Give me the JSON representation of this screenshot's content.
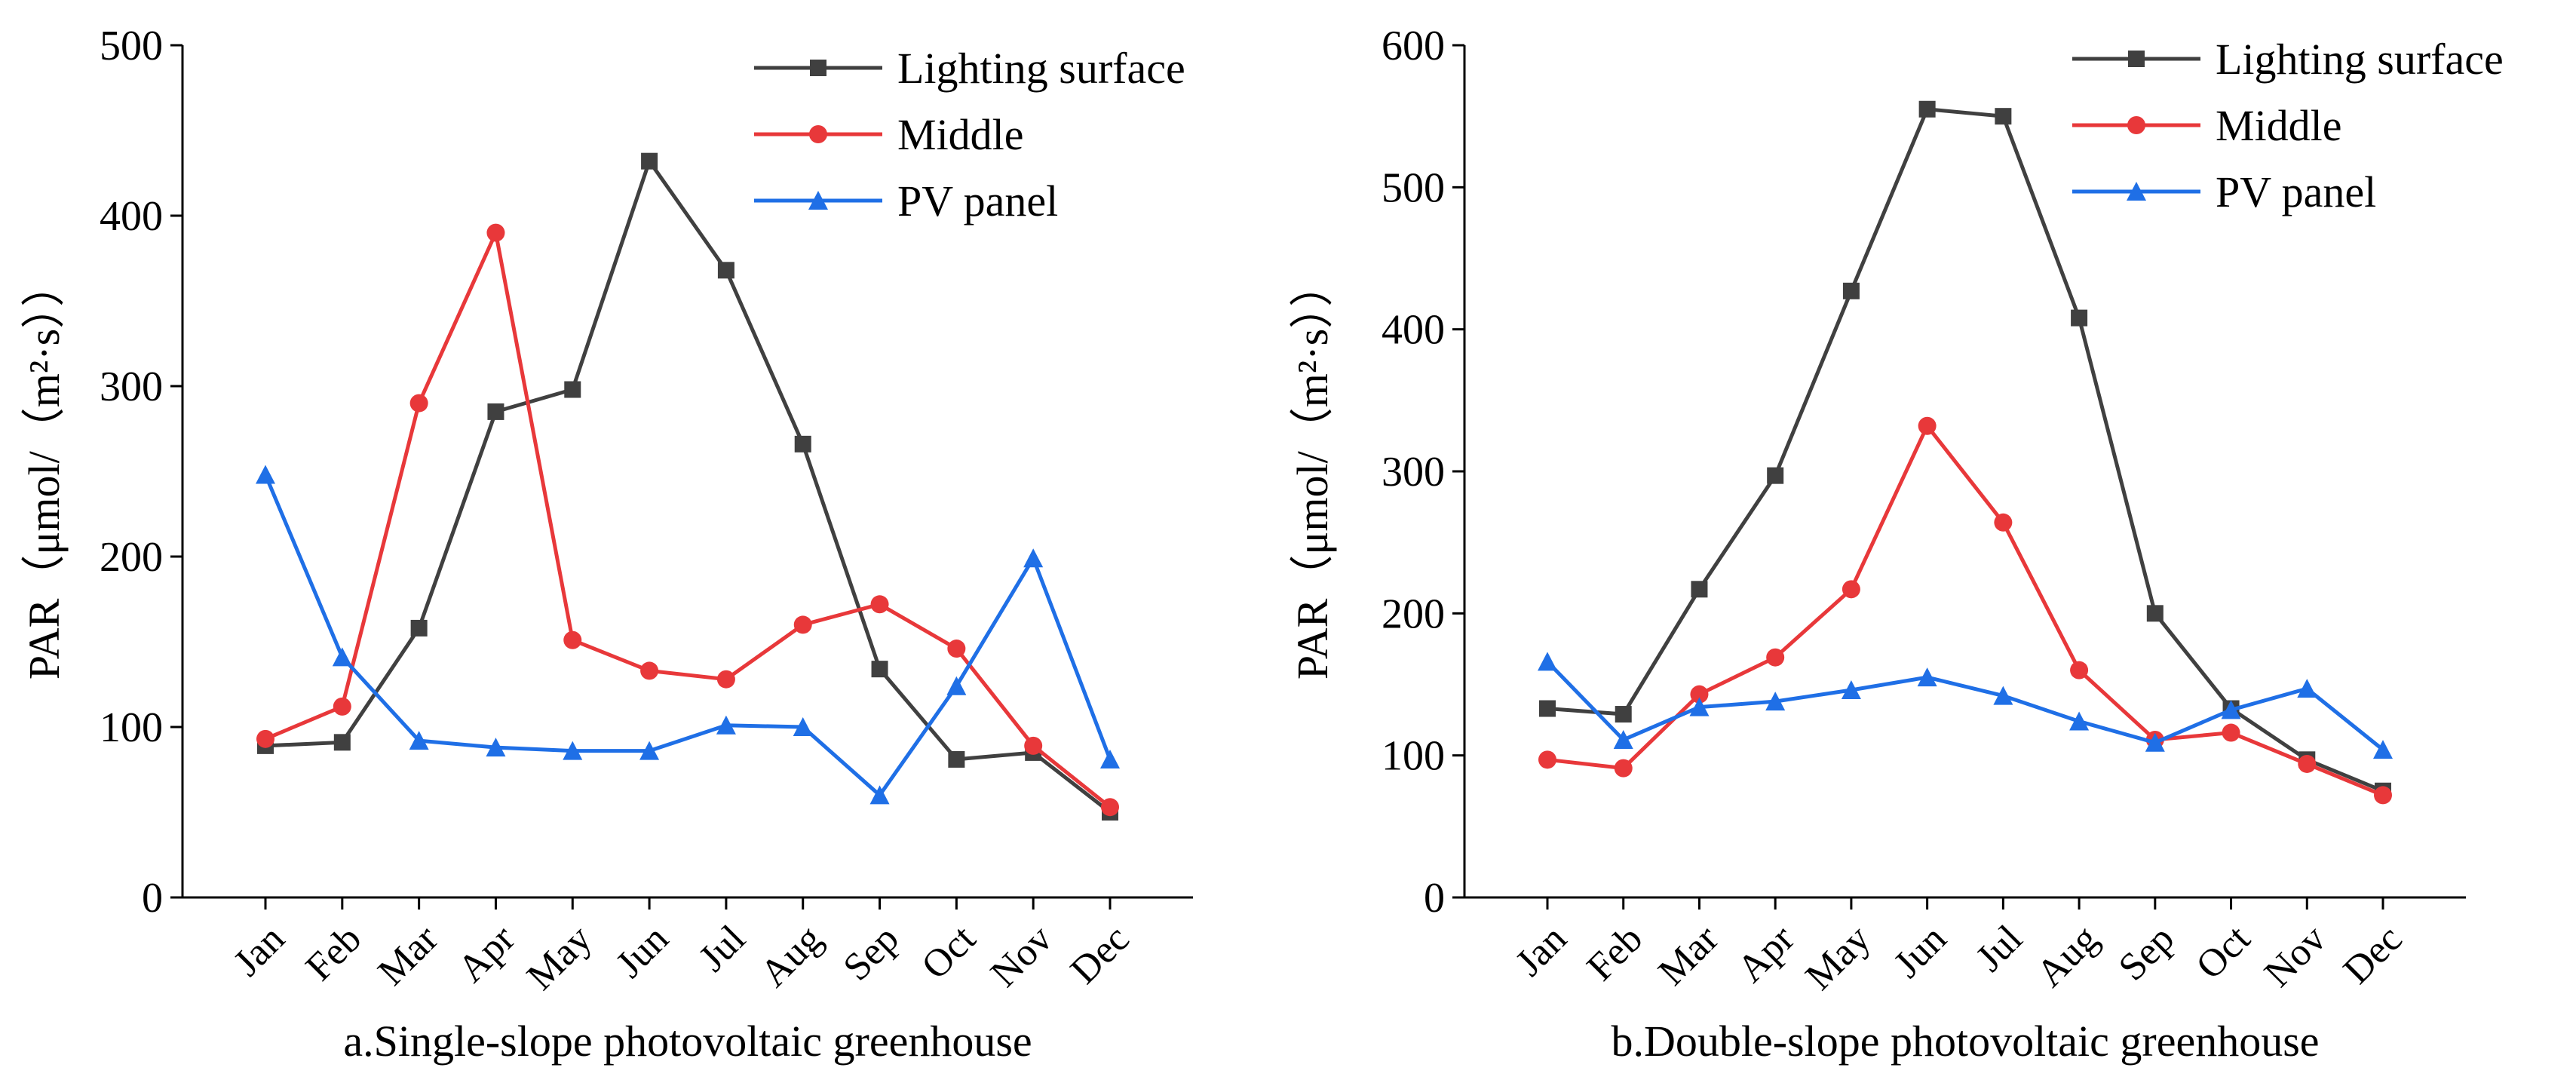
{
  "colors": {
    "lighting": "#404040",
    "middle": "#e8383a",
    "pv": "#1f6fe6",
    "axis": "#000000"
  },
  "chart_data": [
    {
      "type": "line",
      "title": "a.Single-slope photovoltaic greenhouse",
      "xlabel": "",
      "ylabel": "PAR（μmol/（m²·s））",
      "ylim": [
        0,
        500
      ],
      "yticks": [
        0,
        100,
        200,
        300,
        400,
        500
      ],
      "legend_position": "top-right",
      "categories": [
        "Jan",
        "Feb",
        "Mar",
        "Apr",
        "May",
        "Jun",
        "Jul",
        "Aug",
        "Sep",
        "Oct",
        "Nov",
        "Dec"
      ],
      "series": [
        {
          "name": "Lighting surface",
          "marker": "square",
          "color_key": "lighting",
          "values": [
            89,
            91,
            158,
            285,
            298,
            432,
            368,
            266,
            134,
            81,
            85,
            50
          ]
        },
        {
          "name": "Middle",
          "marker": "circle",
          "color_key": "middle",
          "values": [
            93,
            112,
            290,
            390,
            151,
            133,
            128,
            160,
            172,
            146,
            89,
            53
          ]
        },
        {
          "name": "PV panel",
          "marker": "triangle",
          "color_key": "pv",
          "values": [
            248,
            141,
            92,
            88,
            86,
            86,
            101,
            100,
            60,
            124,
            199,
            81
          ]
        }
      ]
    },
    {
      "type": "line",
      "title": "b.Double-slope photovoltaic greenhouse",
      "xlabel": "",
      "ylabel": "PAR（μmol/（m²·s））",
      "ylim": [
        0,
        600
      ],
      "yticks": [
        0,
        100,
        200,
        300,
        400,
        500,
        600
      ],
      "legend_position": "top-right",
      "categories": [
        "Jan",
        "Feb",
        "Mar",
        "Apr",
        "May",
        "Jun",
        "Jul",
        "Aug",
        "Sep",
        "Oct",
        "Nov",
        "Dec"
      ],
      "series": [
        {
          "name": "Lighting surface",
          "marker": "square",
          "color_key": "lighting",
          "values": [
            133,
            129,
            217,
            297,
            427,
            555,
            550,
            408,
            200,
            133,
            97,
            75
          ]
        },
        {
          "name": "Middle",
          "marker": "circle",
          "color_key": "middle",
          "values": [
            97,
            91,
            143,
            169,
            217,
            332,
            264,
            160,
            111,
            116,
            94,
            72
          ]
        },
        {
          "name": "PV panel",
          "marker": "triangle",
          "color_key": "pv",
          "values": [
            166,
            111,
            134,
            138,
            146,
            155,
            142,
            124,
            109,
            132,
            147,
            104
          ]
        }
      ]
    }
  ]
}
